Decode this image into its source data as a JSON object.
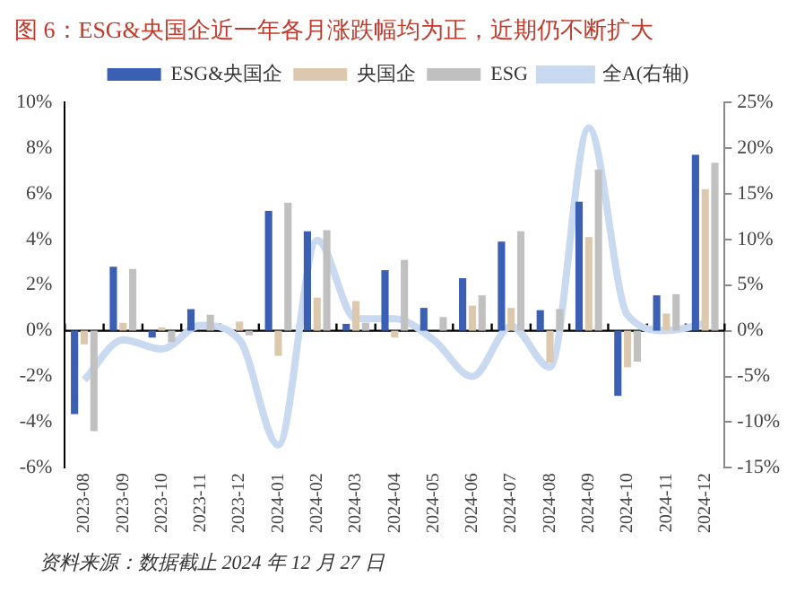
{
  "chart_data": {
    "type": "bar",
    "title": "图 6：ESG&央国企近一年各月涨跌幅均为正，近期仍不断扩大",
    "categories": [
      "2023-08",
      "2023-09",
      "2023-10",
      "2023-11",
      "2023-12",
      "2024-01",
      "2024-02",
      "2024-03",
      "2024-04",
      "2024-05",
      "2024-06",
      "2024-07",
      "2024-08",
      "2024-09",
      "2024-10",
      "2024-11",
      "2024-12"
    ],
    "series": [
      {
        "name": "ESG&央国企",
        "color": "#3a5fb3",
        "values": [
          -3.65,
          2.8,
          -0.3,
          0.95,
          0,
          5.25,
          4.35,
          0.3,
          2.65,
          1.0,
          2.3,
          3.9,
          0.9,
          5.65,
          -2.85,
          1.55,
          7.7
        ]
      },
      {
        "name": "央国企",
        "color": "#dcc9ad",
        "values": [
          -0.6,
          0.35,
          0.15,
          null,
          0.4,
          -1.1,
          1.45,
          1.3,
          -0.3,
          null,
          1.1,
          1.0,
          -1.4,
          4.1,
          -1.6,
          0.75,
          6.2
        ]
      },
      {
        "name": "ESG",
        "color": "#c0c0c0",
        "values": [
          -4.4,
          2.7,
          -0.5,
          0.7,
          -0.2,
          5.6,
          4.4,
          0.35,
          3.1,
          0.6,
          1.55,
          4.35,
          0.95,
          7.05,
          -1.35,
          1.6,
          7.35
        ]
      },
      {
        "name": "全A(右轴)",
        "type": "line",
        "axis": "y2",
        "color": "#c9d9ef",
        "values": [
          -5.4,
          -1,
          -2,
          0.6,
          -1,
          -12.5,
          9.9,
          1.3,
          1.3,
          -1,
          -5,
          0.5,
          -4,
          22.2,
          1.7,
          0,
          0.8
        ]
      }
    ],
    "ylim": [
      -6,
      10
    ],
    "yticks": [
      {
        "value": -6,
        "label": "-6%"
      },
      {
        "value": -4,
        "label": "-4%"
      },
      {
        "value": -2,
        "label": "-2%"
      },
      {
        "value": 0,
        "label": "0%"
      },
      {
        "value": 2,
        "label": "2%"
      },
      {
        "value": 4,
        "label": "4%"
      },
      {
        "value": 6,
        "label": "6%"
      },
      {
        "value": 8,
        "label": "8%"
      },
      {
        "value": 10,
        "label": "10%"
      }
    ],
    "y2lim": [
      -15,
      25
    ],
    "y2ticks": [
      {
        "value": -15,
        "label": "-15%"
      },
      {
        "value": -10,
        "label": "-10%"
      },
      {
        "value": -5,
        "label": "-5%"
      },
      {
        "value": 0,
        "label": "0%"
      },
      {
        "value": 5,
        "label": "5%"
      },
      {
        "value": 10,
        "label": "10%"
      },
      {
        "value": 15,
        "label": "15%"
      },
      {
        "value": 20,
        "label": "20%"
      },
      {
        "value": 25,
        "label": "25%"
      }
    ],
    "grid": false,
    "ref_lines": [
      {
        "axis": "y",
        "value": 0,
        "color": "#000000"
      }
    ],
    "legend": "top",
    "marker": "none",
    "annotations": [
      "资料来源：数据截止 2024 年 12 月 27 日"
    ]
  }
}
